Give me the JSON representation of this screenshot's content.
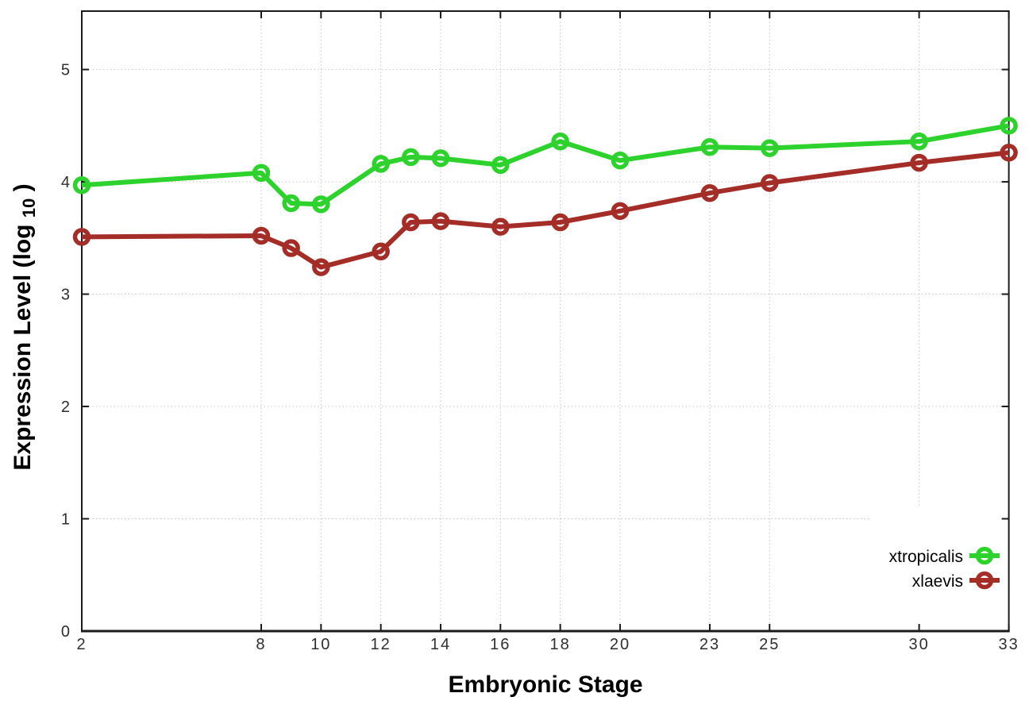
{
  "chart_data": {
    "type": "line",
    "title": "",
    "xlabel": "Embryonic Stage",
    "ylabel": "Expression Level (log10)",
    "ylabel_parts": {
      "prefix": "Expression Level (log",
      "sub": "10",
      "suffix": ")"
    },
    "x": [
      2,
      8,
      9,
      10,
      12,
      13,
      14,
      16,
      18,
      20,
      23,
      25,
      30,
      33
    ],
    "series": [
      {
        "name": "xtropicalis",
        "color": "#2dd22d",
        "values": [
          3.97,
          4.08,
          3.81,
          3.8,
          4.16,
          4.22,
          4.21,
          4.15,
          4.36,
          4.19,
          4.31,
          4.3,
          4.36,
          4.5
        ]
      },
      {
        "name": "xlaevis",
        "color": "#a52d28",
        "values": [
          3.51,
          3.52,
          3.41,
          3.24,
          3.38,
          3.64,
          3.65,
          3.6,
          3.64,
          3.74,
          3.9,
          3.99,
          4.17,
          4.26
        ]
      }
    ],
    "x_ticks": [
      2,
      8,
      10,
      12,
      14,
      16,
      18,
      20,
      23,
      25,
      30,
      33
    ],
    "y_ticks": [
      0,
      1,
      2,
      3,
      4,
      5
    ],
    "xlim": [
      2,
      33
    ],
    "ylim": [
      0,
      5.52
    ],
    "grid": true,
    "grid_style": "dotted",
    "legend_position": "inside bottom right",
    "legend_opaque": true,
    "marker": "open-circle",
    "colors": {
      "grid": "#c4c4c4",
      "axis": "#1a1a1a",
      "tick_label": "#2f2f2f",
      "background": "#ffffff"
    }
  }
}
